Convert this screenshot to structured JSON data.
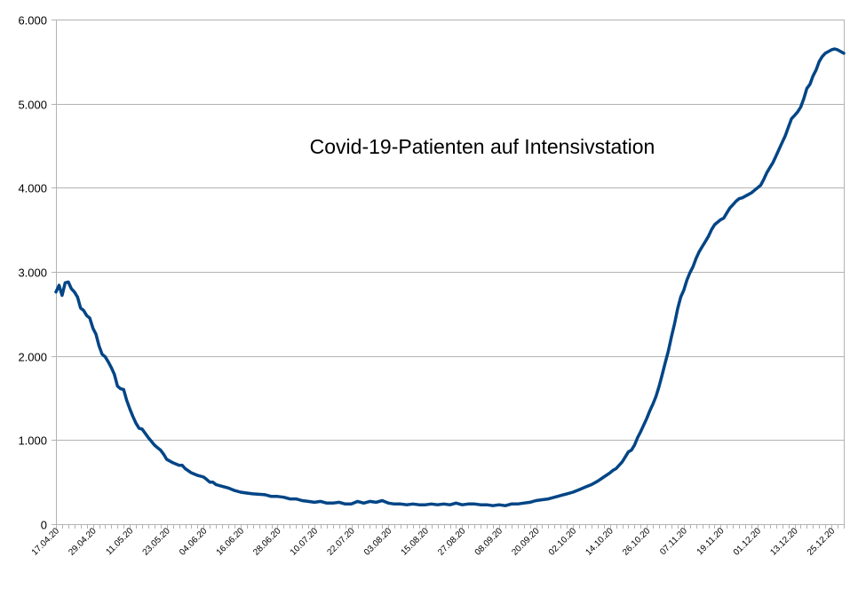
{
  "chart_data": {
    "type": "line",
    "title": "Covid-19-Patienten auf Intensivstation",
    "xlabel": "",
    "ylabel": "",
    "ylim": [
      0,
      6000
    ],
    "yticks": [
      0,
      1000,
      2000,
      3000,
      4000,
      5000,
      6000
    ],
    "ytick_labels": [
      "0",
      "1.000",
      "2.000",
      "3.000",
      "4.000",
      "5.000",
      "6.000"
    ],
    "grid": "horizontal",
    "line_color": "#004586",
    "x_tick_labels": [
      "17.04.20",
      "29.04.20",
      "11.05.20",
      "23.05.20",
      "04.06.20",
      "16.06.20",
      "28.06.20",
      "10.07.20",
      "22.07.20",
      "03.08.20",
      "15.08.20",
      "27.08.20",
      "08.09.20",
      "20.09.20",
      "02.10.20",
      "14.10.20",
      "26.10.20",
      "07.11.20",
      "19.11.20",
      "01.12.20",
      "13.12.20",
      "25.12.20"
    ],
    "x_tick_days": [
      0,
      12,
      24,
      36,
      48,
      60,
      72,
      84,
      96,
      108,
      120,
      132,
      144,
      156,
      168,
      180,
      192,
      204,
      216,
      228,
      240,
      252
    ],
    "x_range_days": [
      0,
      256
    ],
    "series": [
      {
        "points": [
          [
            0,
            2760
          ],
          [
            1,
            2840
          ],
          [
            2,
            2720
          ],
          [
            3,
            2870
          ],
          [
            4,
            2880
          ],
          [
            5,
            2800
          ],
          [
            6,
            2760
          ],
          [
            7,
            2700
          ],
          [
            8,
            2570
          ],
          [
            9,
            2540
          ],
          [
            10,
            2480
          ],
          [
            11,
            2450
          ],
          [
            12,
            2330
          ],
          [
            13,
            2260
          ],
          [
            14,
            2120
          ],
          [
            15,
            2020
          ],
          [
            16,
            1990
          ],
          [
            17,
            1930
          ],
          [
            18,
            1860
          ],
          [
            19,
            1780
          ],
          [
            20,
            1640
          ],
          [
            21,
            1610
          ],
          [
            22,
            1600
          ],
          [
            23,
            1470
          ],
          [
            24,
            1370
          ],
          [
            25,
            1280
          ],
          [
            26,
            1200
          ],
          [
            27,
            1140
          ],
          [
            28,
            1130
          ],
          [
            29,
            1080
          ],
          [
            30,
            1030
          ],
          [
            32,
            940
          ],
          [
            33,
            910
          ],
          [
            34,
            880
          ],
          [
            35,
            830
          ],
          [
            36,
            770
          ],
          [
            38,
            730
          ],
          [
            40,
            700
          ],
          [
            41,
            700
          ],
          [
            42,
            660
          ],
          [
            44,
            610
          ],
          [
            46,
            580
          ],
          [
            48,
            560
          ],
          [
            49,
            530
          ],
          [
            50,
            500
          ],
          [
            51,
            500
          ],
          [
            52,
            470
          ],
          [
            54,
            450
          ],
          [
            56,
            430
          ],
          [
            58,
            400
          ],
          [
            60,
            380
          ],
          [
            62,
            370
          ],
          [
            64,
            360
          ],
          [
            68,
            350
          ],
          [
            70,
            330
          ],
          [
            72,
            330
          ],
          [
            74,
            320
          ],
          [
            76,
            300
          ],
          [
            78,
            300
          ],
          [
            80,
            280
          ],
          [
            82,
            270
          ],
          [
            84,
            260
          ],
          [
            86,
            270
          ],
          [
            88,
            250
          ],
          [
            90,
            250
          ],
          [
            92,
            260
          ],
          [
            94,
            240
          ],
          [
            96,
            240
          ],
          [
            98,
            270
          ],
          [
            100,
            250
          ],
          [
            102,
            270
          ],
          [
            104,
            260
          ],
          [
            106,
            280
          ],
          [
            108,
            250
          ],
          [
            110,
            240
          ],
          [
            112,
            240
          ],
          [
            114,
            230
          ],
          [
            116,
            240
          ],
          [
            118,
            230
          ],
          [
            120,
            230
          ],
          [
            122,
            240
          ],
          [
            124,
            230
          ],
          [
            126,
            240
          ],
          [
            128,
            230
          ],
          [
            130,
            250
          ],
          [
            132,
            230
          ],
          [
            134,
            240
          ],
          [
            136,
            240
          ],
          [
            138,
            230
          ],
          [
            140,
            230
          ],
          [
            142,
            220
          ],
          [
            144,
            230
          ],
          [
            146,
            220
          ],
          [
            148,
            240
          ],
          [
            150,
            240
          ],
          [
            152,
            250
          ],
          [
            154,
            260
          ],
          [
            156,
            280
          ],
          [
            158,
            290
          ],
          [
            160,
            300
          ],
          [
            162,
            320
          ],
          [
            164,
            340
          ],
          [
            166,
            360
          ],
          [
            168,
            380
          ],
          [
            170,
            410
          ],
          [
            172,
            440
          ],
          [
            174,
            470
          ],
          [
            176,
            510
          ],
          [
            178,
            560
          ],
          [
            180,
            610
          ],
          [
            181,
            640
          ],
          [
            182,
            660
          ],
          [
            184,
            740
          ],
          [
            185,
            800
          ],
          [
            186,
            860
          ],
          [
            187,
            880
          ],
          [
            188,
            940
          ],
          [
            189,
            1030
          ],
          [
            190,
            1100
          ],
          [
            191,
            1180
          ],
          [
            192,
            1260
          ],
          [
            193,
            1350
          ],
          [
            194,
            1430
          ],
          [
            195,
            1520
          ],
          [
            196,
            1640
          ],
          [
            197,
            1780
          ],
          [
            198,
            1920
          ],
          [
            199,
            2060
          ],
          [
            200,
            2230
          ],
          [
            201,
            2380
          ],
          [
            202,
            2560
          ],
          [
            203,
            2700
          ],
          [
            204,
            2780
          ],
          [
            205,
            2900
          ],
          [
            206,
            2990
          ],
          [
            207,
            3060
          ],
          [
            208,
            3160
          ],
          [
            209,
            3240
          ],
          [
            210,
            3300
          ],
          [
            211,
            3360
          ],
          [
            212,
            3420
          ],
          [
            213,
            3500
          ],
          [
            214,
            3560
          ],
          [
            215,
            3590
          ],
          [
            216,
            3620
          ],
          [
            217,
            3640
          ],
          [
            218,
            3700
          ],
          [
            219,
            3760
          ],
          [
            220,
            3800
          ],
          [
            221,
            3840
          ],
          [
            222,
            3870
          ],
          [
            223,
            3880
          ],
          [
            224,
            3900
          ],
          [
            225,
            3920
          ],
          [
            226,
            3940
          ],
          [
            227,
            3970
          ],
          [
            228,
            4000
          ],
          [
            229,
            4030
          ],
          [
            230,
            4100
          ],
          [
            231,
            4180
          ],
          [
            232,
            4240
          ],
          [
            233,
            4300
          ],
          [
            234,
            4380
          ],
          [
            235,
            4460
          ],
          [
            236,
            4540
          ],
          [
            237,
            4620
          ],
          [
            238,
            4720
          ],
          [
            239,
            4820
          ],
          [
            240,
            4860
          ],
          [
            241,
            4900
          ],
          [
            242,
            4960
          ],
          [
            243,
            5060
          ],
          [
            244,
            5180
          ],
          [
            245,
            5230
          ],
          [
            246,
            5330
          ],
          [
            247,
            5400
          ],
          [
            248,
            5500
          ],
          [
            249,
            5560
          ],
          [
            250,
            5600
          ],
          [
            251,
            5620
          ],
          [
            252,
            5640
          ],
          [
            253,
            5650
          ],
          [
            254,
            5640
          ],
          [
            255,
            5620
          ],
          [
            256,
            5600
          ]
        ]
      }
    ]
  }
}
